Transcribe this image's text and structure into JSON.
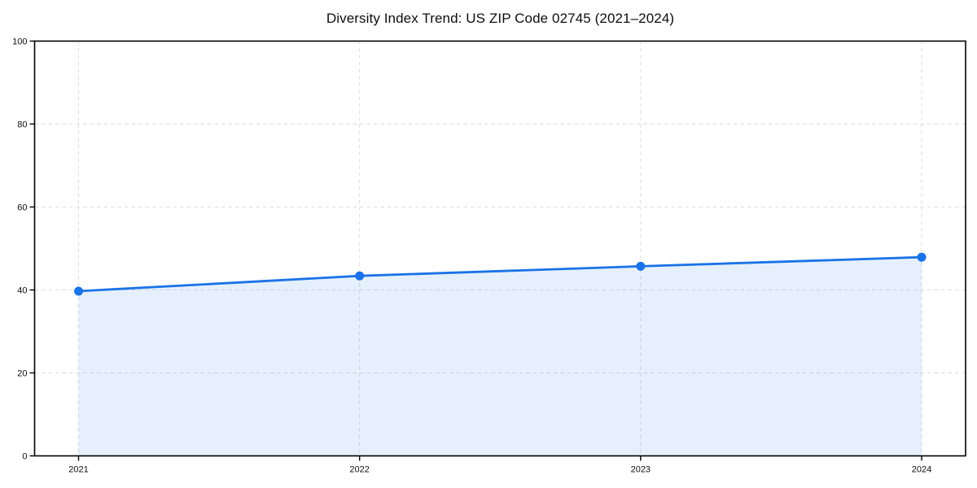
{
  "figure": {
    "background": "#ffffff"
  },
  "chart_data": {
    "type": "area",
    "title": "Diversity Index Trend: US ZIP Code 02745 (2021–2024)",
    "x": [
      2021,
      2022,
      2023,
      2024
    ],
    "xtick_labels": [
      "2021",
      "2022",
      "2023",
      "2024"
    ],
    "series": [
      {
        "name": "Diversity Index",
        "values": [
          39.7,
          43.4,
          45.7,
          47.9
        ]
      }
    ],
    "xlabel": "",
    "ylabel": "",
    "ylim": [
      0,
      100
    ],
    "yticks": [
      0,
      20,
      40,
      60,
      80,
      100
    ],
    "grid": "dashed, horizontal at yticks and vertical at years",
    "legend": "none",
    "marker": "circle",
    "colors": {
      "line": "#1a73e8",
      "marker": "#1a73e8",
      "fill": "#1a73e8",
      "fill_opacity": 0.11,
      "grid": "#dcdcdc",
      "axis": "#000000",
      "tick_text": "#0d0d0d"
    }
  }
}
